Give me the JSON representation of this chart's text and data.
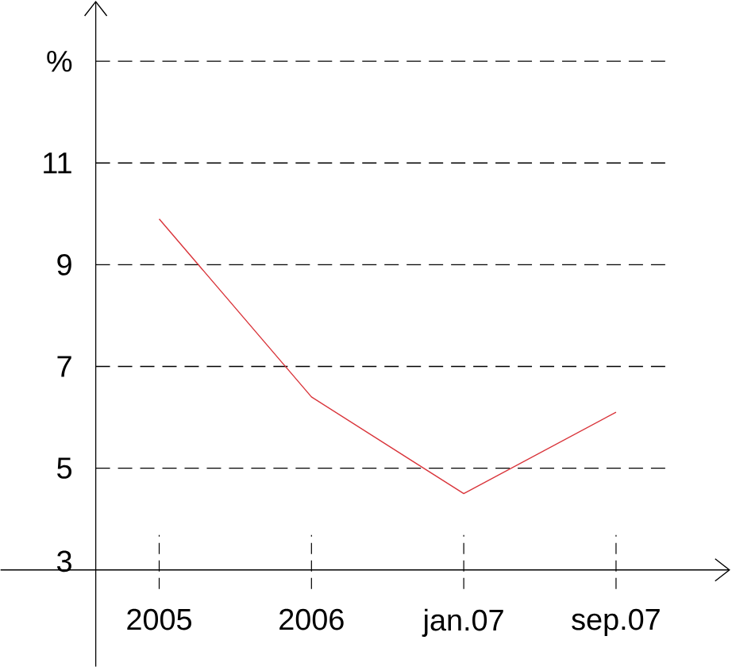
{
  "chart_data": {
    "type": "line",
    "categories": [
      "2005",
      "2006",
      "jan.07",
      "sep.07"
    ],
    "series": [
      {
        "color": "#d9343a",
        "values": [
          9.9,
          6.4,
          4.5,
          6.1
        ]
      }
    ],
    "ylim": [
      1.1,
      14.2
    ],
    "yticks": [
      3,
      5,
      7,
      9,
      11,
      {
        "value": 13,
        "label": "%"
      }
    ],
    "grid": "y",
    "marker": "none",
    "line_style": "solid"
  }
}
